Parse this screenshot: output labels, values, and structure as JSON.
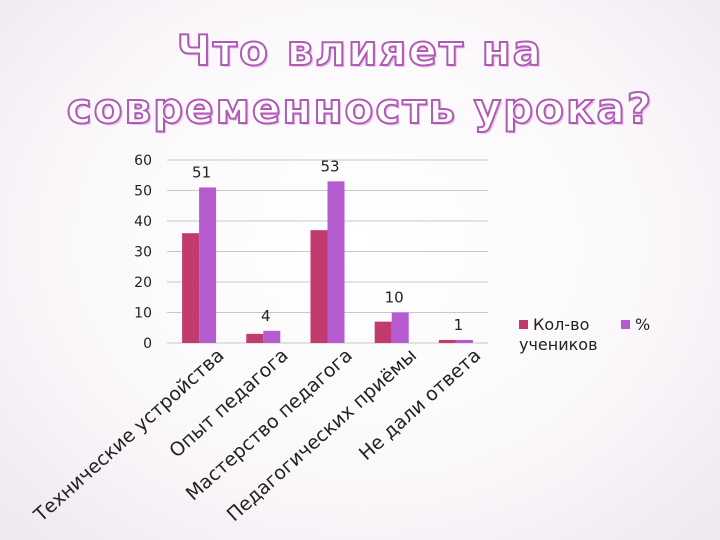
{
  "title": "Что влияет на современность урока?",
  "colors": {
    "series1": "#c23b6e",
    "series2": "#b45bd0",
    "grid": "#c8c8c8",
    "title_outline": "#b05ab6"
  },
  "chart_data": {
    "type": "bar",
    "title": "",
    "categories": [
      "Технические устройства",
      "Опыт педагога",
      "Мастерство педагога",
      "Педагогических приёмы",
      "Не дали ответа"
    ],
    "series": [
      {
        "name": "Кол-во учеников",
        "values": [
          36,
          3,
          37,
          7,
          1
        ],
        "labels": [
          "",
          "",
          "",
          "",
          ""
        ]
      },
      {
        "name": "%",
        "values": [
          51,
          4,
          53,
          10,
          1
        ],
        "labels": [
          "51",
          "4",
          "53",
          "10",
          "1"
        ]
      }
    ],
    "ylim": [
      0,
      60
    ],
    "yticks": [
      0,
      10,
      20,
      30,
      40,
      50,
      60
    ],
    "grid": true,
    "legend": "right",
    "xlabel": "",
    "ylabel": ""
  }
}
